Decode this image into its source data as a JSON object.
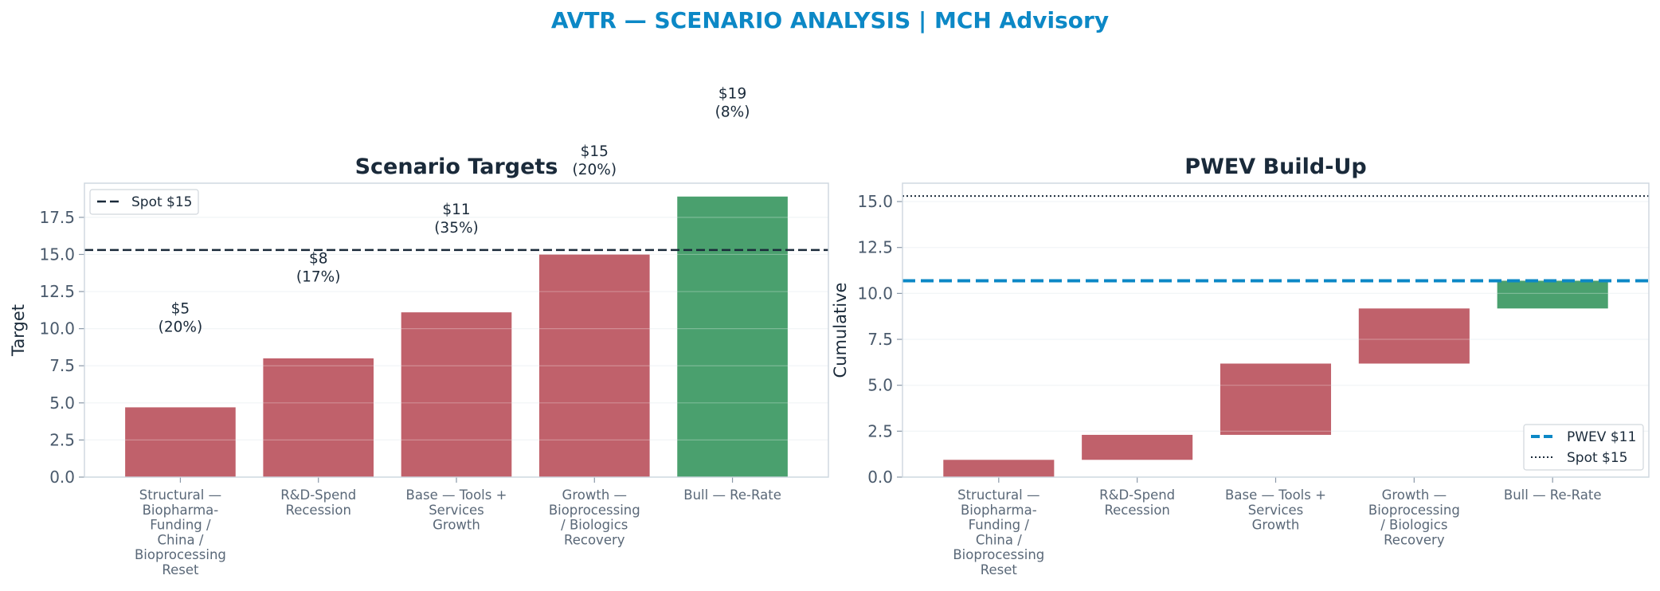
{
  "suptitle": "AVTR — SCENARIO ANALYSIS | MCH Advisory",
  "colors": {
    "bear": "#c0616b",
    "bull": "#4aa06e",
    "pwev": "#0c88c6",
    "spot": "#1a2a3a",
    "title": "#0c88c6",
    "frame": "#cdd6df",
    "grid": "#eef1f4"
  },
  "chart_data": [
    {
      "type": "bar",
      "title": "Scenario Targets",
      "ylabel": "Target",
      "ylim": [
        0,
        19.8
      ],
      "yticks": [
        "0.0",
        "2.5",
        "5.0",
        "7.5",
        "10.0",
        "12.5",
        "15.0",
        "17.5"
      ],
      "categories": [
        [
          "Structural —",
          "Biopharma-",
          "Funding /",
          "China /",
          "Bioprocessing",
          "Reset"
        ],
        [
          "R&D-Spend",
          "Recession"
        ],
        [
          "Base — Tools +",
          "Services",
          "Growth"
        ],
        [
          "Growth —",
          "Bioprocessing",
          "/ Biologics",
          "Recovery"
        ],
        [
          "Bull — Re-Rate"
        ]
      ],
      "values": [
        4.7,
        8.0,
        11.1,
        15.0,
        18.9
      ],
      "bar_types": [
        "bear",
        "bear",
        "bear",
        "bear",
        "bull"
      ],
      "data_labels": [
        [
          "$5",
          "(20%)"
        ],
        [
          "$8",
          "(17%)"
        ],
        [
          "$11",
          "(35%)"
        ],
        [
          "$15",
          "(20%)"
        ],
        [
          "$19",
          "(8%)"
        ]
      ],
      "label_y": [
        10.8,
        14.2,
        17.5,
        21.4,
        25.3
      ],
      "spot": 15.3,
      "legend": {
        "placement": "upper-left",
        "entries": [
          "Spot $15"
        ]
      }
    },
    {
      "type": "waterfall",
      "title": "PWEV Build-Up",
      "ylabel": "Cumulative",
      "ylim": [
        0,
        16.0
      ],
      "yticks": [
        "0.0",
        "2.5",
        "5.0",
        "7.5",
        "10.0",
        "12.5",
        "15.0"
      ],
      "categories": [
        [
          "Structural —",
          "Biopharma-",
          "Funding /",
          "China /",
          "Bioprocessing",
          "Reset"
        ],
        [
          "R&D-Spend",
          "Recession"
        ],
        [
          "Base — Tools +",
          "Services",
          "Growth"
        ],
        [
          "Growth —",
          "Bioprocessing",
          "/ Biologics",
          "Recovery"
        ],
        [
          "Bull — Re-Rate"
        ]
      ],
      "bases": [
        0.0,
        0.94,
        2.3,
        6.18,
        9.18
      ],
      "tops": [
        0.94,
        2.3,
        6.18,
        9.18,
        10.69
      ],
      "bar_types": [
        "bear",
        "bear",
        "bear",
        "bear",
        "bull"
      ],
      "pwev": 10.69,
      "spot": 15.3,
      "legend": {
        "placement": "lower-right",
        "entries": [
          "PWEV $11",
          "Spot $15"
        ]
      }
    }
  ]
}
